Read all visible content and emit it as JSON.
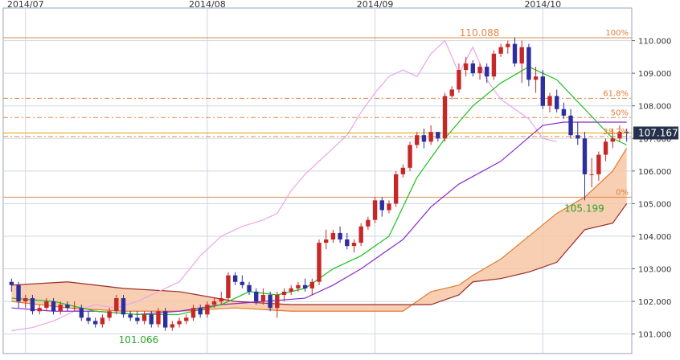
{
  "chart_data": {
    "type": "candlestick",
    "x_labels": [
      "2014/07",
      "2014/08",
      "2014/09",
      "2014/10"
    ],
    "y_ticks": [
      101.0,
      102.0,
      103.0,
      104.0,
      105.0,
      106.0,
      107.0,
      108.0,
      109.0,
      110.0
    ],
    "y_tick_labels": [
      "101.000",
      "102.000",
      "103.000",
      "104.000",
      "105.000",
      "106.000",
      "107.000",
      "108.000",
      "109.000",
      "110.000"
    ],
    "ylim": [
      100.4,
      111.0
    ],
    "grid": true,
    "current_price": 107.167,
    "current_price_label": "107.167",
    "annotations": {
      "high": {
        "value": 110.088,
        "label": "110.088"
      },
      "low_right": {
        "value": 105.199,
        "label": "105.199"
      },
      "low_left": {
        "value": 101.066,
        "label": "101.066"
      }
    },
    "fibonacci": [
      {
        "label": "100%",
        "value": 110.088
      },
      {
        "label": "61.8%",
        "value": 108.23
      },
      {
        "label": "50%",
        "value": 107.64
      },
      {
        "label": "38.2%",
        "value": 107.06
      },
      {
        "label": "0%",
        "value": 105.199
      }
    ],
    "candles": [
      [
        102.6,
        102.7,
        102.3,
        102.5
      ],
      [
        102.5,
        102.6,
        101.8,
        102.0
      ],
      [
        102.0,
        102.2,
        101.8,
        102.1
      ],
      [
        102.1,
        102.2,
        101.6,
        101.7
      ],
      [
        101.7,
        101.9,
        101.6,
        101.8
      ],
      [
        101.8,
        102.1,
        101.7,
        102.0
      ],
      [
        102.0,
        102.1,
        101.6,
        101.7
      ],
      [
        101.7,
        102.0,
        101.6,
        101.9
      ],
      [
        101.9,
        102.0,
        101.7,
        101.8
      ],
      [
        101.8,
        102.0,
        101.7,
        101.8
      ],
      [
        101.8,
        101.9,
        101.4,
        101.5
      ],
      [
        101.5,
        101.7,
        101.3,
        101.4
      ],
      [
        101.4,
        101.5,
        101.2,
        101.3
      ],
      [
        101.3,
        101.6,
        101.2,
        101.5
      ],
      [
        101.5,
        101.8,
        101.4,
        101.7
      ],
      [
        101.7,
        102.2,
        101.6,
        102.1
      ],
      [
        102.1,
        102.2,
        101.5,
        101.6
      ],
      [
        101.6,
        101.7,
        101.4,
        101.5
      ],
      [
        101.5,
        101.7,
        101.3,
        101.4
      ],
      [
        101.4,
        101.7,
        101.3,
        101.6
      ],
      [
        101.6,
        101.7,
        101.2,
        101.3
      ],
      [
        101.3,
        101.8,
        101.2,
        101.7
      ],
      [
        101.7,
        101.8,
        101.1,
        101.2
      ],
      [
        101.2,
        101.4,
        101.1,
        101.3
      ],
      [
        101.3,
        101.5,
        101.2,
        101.4
      ],
      [
        101.4,
        101.6,
        101.3,
        101.5
      ],
      [
        101.5,
        101.9,
        101.4,
        101.8
      ],
      [
        101.8,
        101.9,
        101.5,
        101.6
      ],
      [
        101.6,
        102.0,
        101.5,
        101.9
      ],
      [
        101.9,
        102.1,
        101.8,
        102.0
      ],
      [
        102.0,
        102.3,
        101.9,
        102.1
      ],
      [
        102.1,
        102.9,
        102.0,
        102.8
      ],
      [
        102.8,
        102.9,
        102.5,
        102.6
      ],
      [
        102.6,
        102.8,
        102.4,
        102.5
      ],
      [
        102.5,
        102.6,
        102.2,
        102.3
      ],
      [
        102.3,
        102.4,
        101.9,
        102.0
      ],
      [
        102.0,
        102.4,
        101.9,
        102.2
      ],
      [
        102.2,
        102.3,
        101.7,
        101.8
      ],
      [
        101.8,
        102.3,
        101.5,
        102.2
      ],
      [
        102.2,
        102.4,
        102.0,
        102.3
      ],
      [
        102.3,
        102.5,
        102.2,
        102.4
      ],
      [
        102.4,
        102.6,
        102.3,
        102.5
      ],
      [
        102.5,
        102.7,
        102.3,
        102.4
      ],
      [
        102.4,
        102.7,
        102.2,
        102.6
      ],
      [
        102.6,
        103.9,
        102.5,
        103.8
      ],
      [
        103.8,
        104.2,
        103.6,
        103.9
      ],
      [
        103.9,
        104.2,
        103.8,
        104.1
      ],
      [
        104.1,
        104.3,
        103.8,
        103.9
      ],
      [
        103.9,
        104.1,
        103.6,
        103.7
      ],
      [
        103.7,
        103.9,
        103.5,
        103.8
      ],
      [
        103.8,
        104.4,
        103.7,
        104.3
      ],
      [
        104.3,
        104.6,
        104.2,
        104.5
      ],
      [
        104.5,
        105.2,
        104.4,
        105.1
      ],
      [
        105.1,
        105.2,
        104.6,
        104.8
      ],
      [
        104.8,
        105.1,
        104.7,
        105.0
      ],
      [
        105.0,
        106.0,
        104.9,
        105.9
      ],
      [
        105.9,
        106.2,
        105.8,
        106.1
      ],
      [
        106.1,
        106.9,
        106.0,
        106.8
      ],
      [
        106.8,
        107.2,
        106.7,
        107.1
      ],
      [
        107.1,
        107.3,
        106.7,
        106.9
      ],
      [
        106.9,
        107.4,
        106.8,
        107.2
      ],
      [
        107.2,
        107.1,
        106.9,
        107.0
      ],
      [
        107.0,
        108.4,
        106.9,
        108.3
      ],
      [
        108.3,
        108.6,
        108.2,
        108.5
      ],
      [
        108.5,
        109.3,
        108.4,
        109.1
      ],
      [
        109.1,
        109.5,
        108.9,
        109.3
      ],
      [
        109.3,
        109.4,
        108.9,
        109.0
      ],
      [
        109.0,
        109.3,
        108.8,
        109.2
      ],
      [
        109.2,
        109.3,
        108.7,
        108.9
      ],
      [
        108.9,
        109.7,
        108.8,
        109.6
      ],
      [
        109.6,
        109.9,
        109.5,
        109.8
      ],
      [
        109.8,
        110.0,
        109.6,
        109.9
      ],
      [
        109.9,
        110.1,
        109.2,
        109.3
      ],
      [
        109.3,
        110.0,
        108.7,
        109.8
      ],
      [
        109.8,
        109.9,
        108.6,
        108.8
      ],
      [
        108.8,
        109.2,
        108.4,
        108.9
      ],
      [
        108.9,
        109.1,
        107.9,
        108.0
      ],
      [
        108.0,
        108.4,
        107.8,
        108.3
      ],
      [
        108.3,
        108.5,
        107.8,
        107.9
      ],
      [
        107.9,
        108.1,
        107.6,
        107.7
      ],
      [
        107.7,
        107.9,
        107.0,
        107.1
      ],
      [
        107.1,
        107.5,
        106.8,
        107.0
      ],
      [
        107.0,
        107.2,
        105.1,
        105.9
      ],
      [
        105.9,
        106.4,
        105.5,
        105.9
      ],
      [
        105.9,
        106.6,
        105.7,
        106.5
      ],
      [
        106.5,
        107.0,
        106.3,
        106.9
      ],
      [
        106.9,
        107.3,
        106.7,
        107.0
      ],
      [
        107.0,
        107.4,
        106.9,
        107.2
      ],
      [
        107.2,
        107.3,
        106.9,
        107.17
      ]
    ],
    "indicators": {
      "lagging_span": [
        [
          0,
          101.1
        ],
        [
          3,
          101.2
        ],
        [
          6,
          101.4
        ],
        [
          9,
          101.7
        ],
        [
          12,
          101.9
        ],
        [
          15,
          101.8
        ],
        [
          18,
          102.0
        ],
        [
          21,
          102.3
        ],
        [
          24,
          102.6
        ],
        [
          27,
          103.4
        ],
        [
          30,
          104.0
        ],
        [
          33,
          104.3
        ],
        [
          36,
          104.5
        ],
        [
          38,
          104.7
        ],
        [
          40,
          105.4
        ],
        [
          42,
          105.9
        ],
        [
          44,
          106.3
        ],
        [
          46,
          106.7
        ],
        [
          48,
          107.1
        ],
        [
          50,
          107.8
        ],
        [
          52,
          108.4
        ],
        [
          54,
          108.9
        ],
        [
          56,
          109.1
        ],
        [
          58,
          108.9
        ],
        [
          60,
          109.6
        ],
        [
          62,
          110.0
        ],
        [
          64,
          109.0
        ],
        [
          66,
          109.8
        ],
        [
          68,
          108.8
        ],
        [
          70,
          108.2
        ],
        [
          72,
          107.9
        ],
        [
          74,
          107.6
        ],
        [
          76,
          107.0
        ],
        [
          78,
          106.9
        ]
      ],
      "tenkan": [
        [
          0,
          102.1
        ],
        [
          6,
          102.0
        ],
        [
          12,
          101.7
        ],
        [
          18,
          101.6
        ],
        [
          24,
          101.6
        ],
        [
          30,
          101.9
        ],
        [
          34,
          102.3
        ],
        [
          38,
          102.2
        ],
        [
          42,
          102.4
        ],
        [
          46,
          103.0
        ],
        [
          50,
          103.4
        ],
        [
          54,
          104.0
        ],
        [
          58,
          105.8
        ],
        [
          62,
          107.0
        ],
        [
          66,
          108.0
        ],
        [
          70,
          108.7
        ],
        [
          74,
          109.2
        ],
        [
          78,
          108.8
        ],
        [
          82,
          107.9
        ],
        [
          86,
          107.0
        ],
        [
          88,
          106.8
        ]
      ],
      "kijun": [
        [
          0,
          101.8
        ],
        [
          6,
          101.7
        ],
        [
          12,
          101.7
        ],
        [
          18,
          101.6
        ],
        [
          24,
          101.7
        ],
        [
          30,
          101.9
        ],
        [
          36,
          102.0
        ],
        [
          42,
          102.1
        ],
        [
          46,
          102.5
        ],
        [
          50,
          103.0
        ],
        [
          56,
          103.9
        ],
        [
          60,
          104.9
        ],
        [
          64,
          105.6
        ],
        [
          70,
          106.3
        ],
        [
          76,
          107.4
        ],
        [
          79,
          107.5
        ],
        [
          82,
          107.5
        ],
        [
          88,
          107.5
        ]
      ]
    },
    "cloud": {
      "span_a": [
        [
          0,
          102.0
        ],
        [
          8,
          101.8
        ],
        [
          16,
          101.7
        ],
        [
          24,
          101.7
        ],
        [
          32,
          101.8
        ],
        [
          40,
          101.7
        ],
        [
          50,
          101.7
        ],
        [
          56,
          101.7
        ],
        [
          60,
          102.3
        ],
        [
          64,
          102.5
        ],
        [
          66,
          102.8
        ],
        [
          70,
          103.3
        ],
        [
          74,
          104.0
        ],
        [
          78,
          104.7
        ],
        [
          82,
          105.2
        ],
        [
          86,
          106.0
        ],
        [
          88,
          106.7
        ]
      ],
      "span_b": [
        [
          0,
          102.5
        ],
        [
          8,
          102.6
        ],
        [
          16,
          102.4
        ],
        [
          24,
          102.3
        ],
        [
          32,
          102.0
        ],
        [
          40,
          101.9
        ],
        [
          50,
          101.9
        ],
        [
          56,
          101.9
        ],
        [
          60,
          101.9
        ],
        [
          64,
          102.2
        ],
        [
          66,
          102.6
        ],
        [
          70,
          102.7
        ],
        [
          74,
          102.9
        ],
        [
          78,
          103.2
        ],
        [
          82,
          104.2
        ],
        [
          86,
          104.4
        ],
        [
          88,
          105.0
        ]
      ]
    }
  },
  "colors": {
    "up": "#c62828",
    "down": "#2e2e9e",
    "grid": "#cfd5e3",
    "lagging": "#e9a6e6",
    "tenkan": "#1fbf1f",
    "kijun": "#8a2ac8",
    "cloud_fill": "#f7c7a4",
    "cloud_line_a": "#e07a2e",
    "cloud_line_b": "#9b2a2a",
    "fib": "#e08a4a",
    "price_box": "#25304a",
    "annotation_high": "#e08a4a",
    "annotation_low": "#2aa52a"
  }
}
